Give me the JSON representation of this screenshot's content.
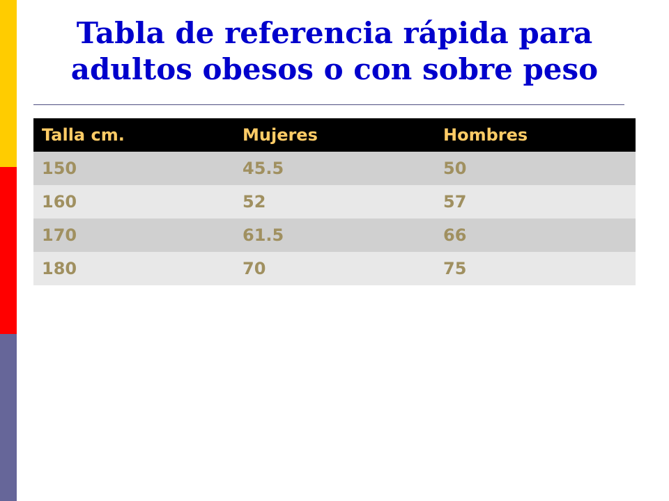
{
  "title": {
    "line1": "Tabla de referencia rápida para",
    "line2": "adultos obesos o con sobre peso"
  },
  "table": {
    "headers": [
      "Talla cm.",
      "Mujeres",
      "Hombres"
    ],
    "rows": [
      [
        "150",
        "45.5",
        "50"
      ],
      [
        "160",
        "52",
        "57"
      ],
      [
        "170",
        "61.5",
        "66"
      ],
      [
        "180",
        "70",
        "75"
      ]
    ]
  },
  "colors": {
    "title": "#0000cc",
    "header_bg": "#000000",
    "header_text": "#ffcc66",
    "cell_text": "#a09060",
    "row_dark": "#d0d0d0",
    "row_light": "#e8e8e8",
    "bar_yellow": "#ffcc00",
    "bar_red": "#ff0000",
    "bar_blue": "#666699"
  }
}
